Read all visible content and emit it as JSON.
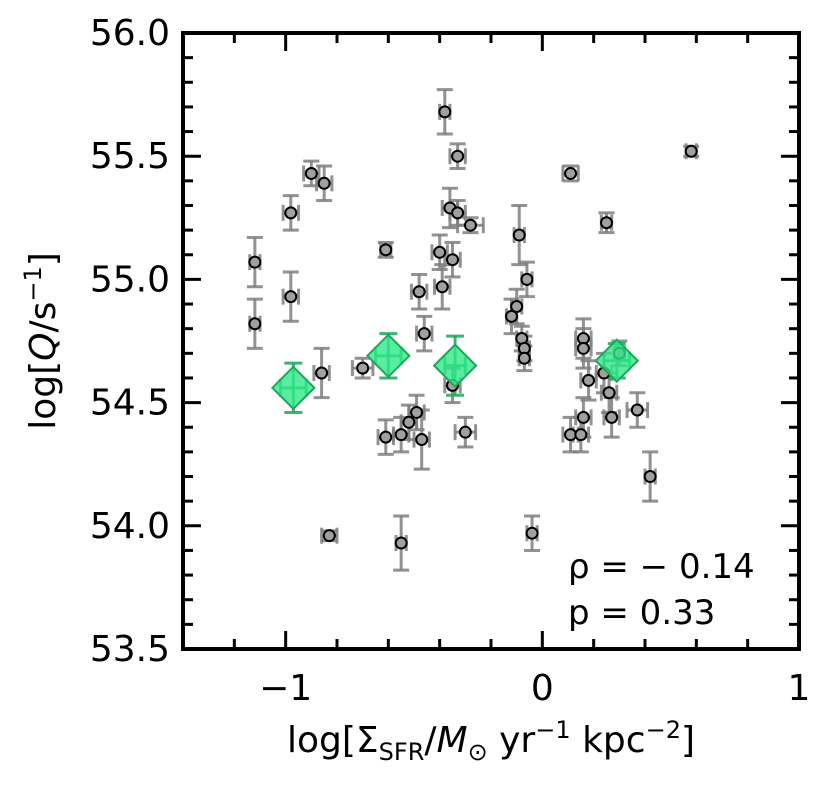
{
  "chart_data": {
    "type": "scatter",
    "xlabel": "log[Σ_SFR/M_⊙ yr^−1 kpc^−2]",
    "ylabel": "log[Q/s^−1]",
    "xlim": [
      -1.4,
      1.0
    ],
    "ylim": [
      53.5,
      56.0
    ],
    "x_ticks": [
      -1,
      0,
      1
    ],
    "x_tick_labels": [
      "−1",
      "0",
      "1"
    ],
    "y_ticks": [
      53.5,
      54.0,
      54.5,
      55.0,
      55.5,
      56.0
    ],
    "y_tick_labels": [
      "53.5",
      "54.0",
      "54.5",
      "55.0",
      "55.5",
      "56.0"
    ],
    "annotations": {
      "rho": "ρ = − 0.14",
      "p": "p = 0.33"
    },
    "colors": {
      "points": "#a0a0a0",
      "errorbars": "#7f7f7f",
      "binned": "#2ee88a",
      "binned_edge": "#1fa65a"
    },
    "series": [
      {
        "marker": "circle",
        "points": [
          {
            "x": -1.12,
            "y": 55.07,
            "yerr": 0.1,
            "xerr": 0.02
          },
          {
            "x": -1.12,
            "y": 54.82,
            "yerr": 0.1,
            "xerr": 0.02
          },
          {
            "x": -0.98,
            "y": 55.27,
            "yerr": 0.07,
            "xerr": 0.03
          },
          {
            "x": -0.98,
            "y": 54.93,
            "yerr": 0.1,
            "xerr": 0.03
          },
          {
            "x": -0.9,
            "y": 55.43,
            "yerr": 0.05,
            "xerr": 0.03
          },
          {
            "x": -0.85,
            "y": 55.39,
            "yerr": 0.07,
            "xerr": 0.03
          },
          {
            "x": -0.86,
            "y": 54.62,
            "yerr": 0.1,
            "xerr": 0.03
          },
          {
            "x": -0.83,
            "y": 53.96,
            "yerr": 0.02,
            "xerr": 0.03
          },
          {
            "x": -0.7,
            "y": 54.64,
            "yerr": 0.04,
            "xerr": 0.04
          },
          {
            "x": -0.61,
            "y": 55.12,
            "yerr": 0.03,
            "xerr": 0.02
          },
          {
            "x": -0.61,
            "y": 54.36,
            "yerr": 0.07,
            "xerr": 0.03
          },
          {
            "x": -0.55,
            "y": 53.93,
            "yerr": 0.11,
            "xerr": 0.02
          },
          {
            "x": -0.55,
            "y": 54.37,
            "yerr": 0.07,
            "xerr": 0.03
          },
          {
            "x": -0.52,
            "y": 54.42,
            "yerr": 0.07,
            "xerr": 0.03
          },
          {
            "x": -0.49,
            "y": 54.46,
            "yerr": 0.07,
            "xerr": 0.03
          },
          {
            "x": -0.47,
            "y": 54.35,
            "yerr": 0.12,
            "xerr": 0.03
          },
          {
            "x": -0.48,
            "y": 54.95,
            "yerr": 0.07,
            "xerr": 0.03
          },
          {
            "x": -0.46,
            "y": 54.78,
            "yerr": 0.07,
            "xerr": 0.03
          },
          {
            "x": -0.4,
            "y": 55.11,
            "yerr": 0.07,
            "xerr": 0.03
          },
          {
            "x": -0.39,
            "y": 54.97,
            "yerr": 0.09,
            "xerr": 0.03
          },
          {
            "x": -0.38,
            "y": 55.68,
            "yerr": 0.09,
            "xerr": 0.02
          },
          {
            "x": -0.36,
            "y": 55.29,
            "yerr": 0.08,
            "xerr": 0.03
          },
          {
            "x": -0.35,
            "y": 55.08,
            "yerr": 0.07,
            "xerr": 0.03
          },
          {
            "x": -0.33,
            "y": 55.5,
            "yerr": 0.05,
            "xerr": 0.03
          },
          {
            "x": -0.33,
            "y": 55.27,
            "yerr": 0.05,
            "xerr": 0.03
          },
          {
            "x": -0.35,
            "y": 54.57,
            "yerr": 0.07,
            "xerr": 0.03
          },
          {
            "x": -0.3,
            "y": 54.38,
            "yerr": 0.06,
            "xerr": 0.04
          },
          {
            "x": -0.28,
            "y": 55.22,
            "yerr": 0.03,
            "xerr": 0.05
          },
          {
            "x": -0.12,
            "y": 54.85,
            "yerr": 0.07,
            "xerr": 0.02
          },
          {
            "x": -0.1,
            "y": 54.89,
            "yerr": 0.07,
            "xerr": 0.02
          },
          {
            "x": -0.09,
            "y": 55.18,
            "yerr": 0.12,
            "xerr": 0.02
          },
          {
            "x": -0.08,
            "y": 54.76,
            "yerr": 0.05,
            "xerr": 0.02
          },
          {
            "x": -0.07,
            "y": 54.72,
            "yerr": 0.05,
            "xerr": 0.02
          },
          {
            "x": -0.07,
            "y": 54.68,
            "yerr": 0.05,
            "xerr": 0.02
          },
          {
            "x": -0.06,
            "y": 55.0,
            "yerr": 0.07,
            "xerr": 0.02
          },
          {
            "x": -0.04,
            "y": 53.97,
            "yerr": 0.07,
            "xerr": 0.02
          },
          {
            "x": 0.11,
            "y": 55.43,
            "yerr": 0.03,
            "xerr": 0.03
          },
          {
            "x": 0.11,
            "y": 54.37,
            "yerr": 0.07,
            "xerr": 0.03
          },
          {
            "x": 0.15,
            "y": 54.37,
            "yerr": 0.07,
            "xerr": 0.03
          },
          {
            "x": 0.16,
            "y": 54.76,
            "yerr": 0.08,
            "xerr": 0.03
          },
          {
            "x": 0.16,
            "y": 54.72,
            "yerr": 0.08,
            "xerr": 0.03
          },
          {
            "x": 0.16,
            "y": 54.44,
            "yerr": 0.08,
            "xerr": 0.03
          },
          {
            "x": 0.18,
            "y": 54.59,
            "yerr": 0.08,
            "xerr": 0.03
          },
          {
            "x": 0.24,
            "y": 54.62,
            "yerr": 0.08,
            "xerr": 0.03
          },
          {
            "x": 0.25,
            "y": 55.23,
            "yerr": 0.04,
            "xerr": 0.02
          },
          {
            "x": 0.26,
            "y": 54.54,
            "yerr": 0.08,
            "xerr": 0.03
          },
          {
            "x": 0.27,
            "y": 54.44,
            "yerr": 0.08,
            "xerr": 0.03
          },
          {
            "x": 0.3,
            "y": 54.7,
            "yerr": 0.05,
            "xerr": 0.02
          },
          {
            "x": 0.37,
            "y": 54.47,
            "yerr": 0.07,
            "xerr": 0.04
          },
          {
            "x": 0.42,
            "y": 54.2,
            "yerr": 0.1,
            "xerr": 0.02
          },
          {
            "x": 0.58,
            "y": 55.52,
            "yerr": 0.02,
            "xerr": 0.02
          }
        ]
      },
      {
        "marker": "diamond",
        "points": [
          {
            "x": -0.97,
            "y": 54.56,
            "yerr": 0.1,
            "xerr": 0.05
          },
          {
            "x": -0.6,
            "y": 54.69,
            "yerr": 0.09,
            "xerr": 0.05
          },
          {
            "x": -0.34,
            "y": 54.65,
            "yerr": 0.12,
            "xerr": 0.04
          },
          {
            "x": 0.29,
            "y": 54.67,
            "yerr": 0.07,
            "xerr": 0.05
          }
        ]
      }
    ]
  }
}
